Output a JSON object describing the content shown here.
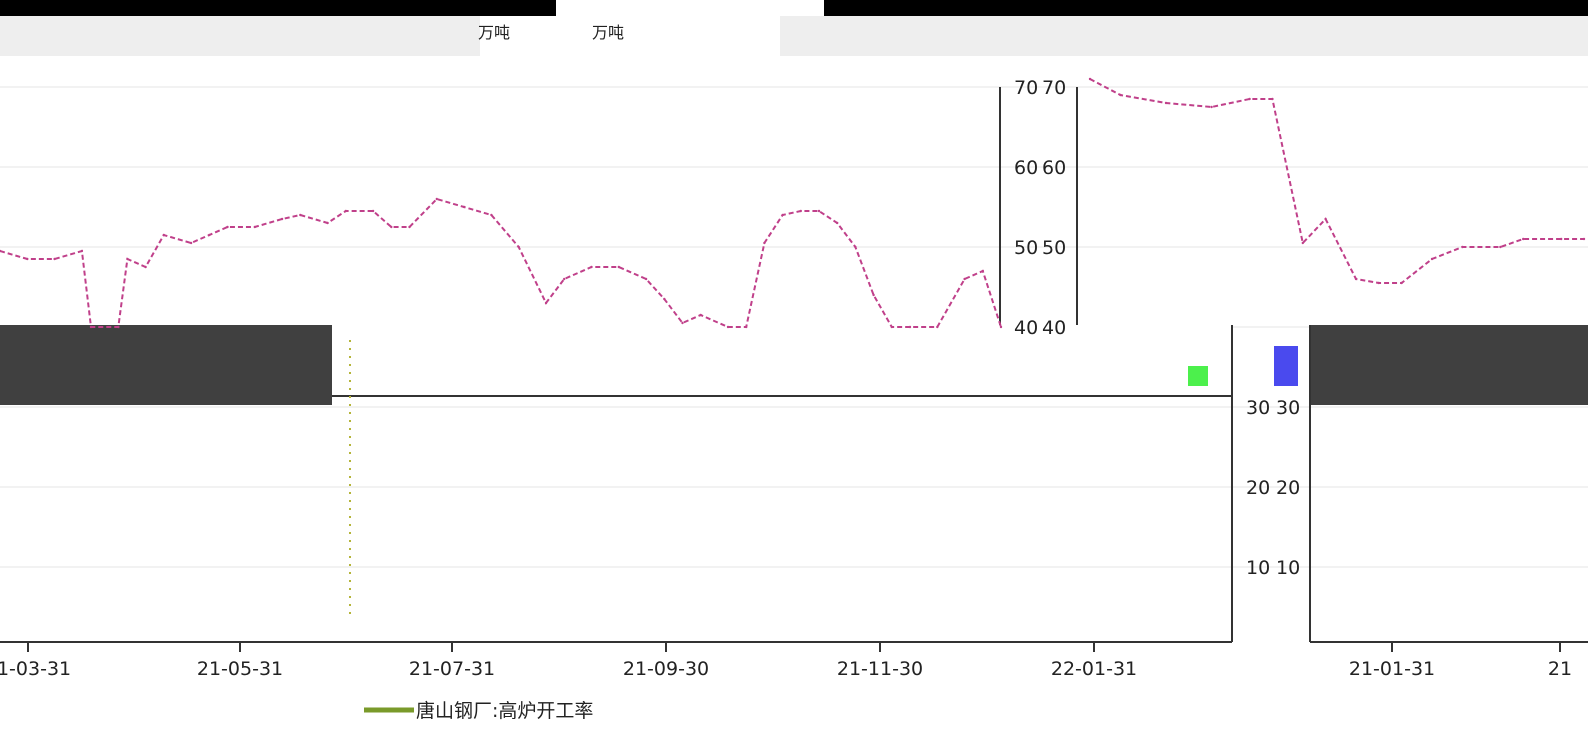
{
  "chart_data": {
    "type": "line",
    "unit_labels": [
      "万吨",
      "万吨"
    ],
    "y_ticks_left_axis": [
      "70",
      "60",
      "50",
      "40"
    ],
    "y_ticks_right_axis": [
      "70",
      "60",
      "50",
      "40",
      "30",
      "20",
      "10"
    ],
    "y_ticks_lower_axis": [
      "30",
      "20",
      "10"
    ],
    "x_ticks": [
      "21-03-31",
      "21-05-31",
      "21-07-31",
      "21-09-30",
      "21-11-30",
      "22-01-31"
    ],
    "x_ticks_right_panel": [
      "21-01-31",
      "21"
    ],
    "ylim": [
      0,
      73
    ],
    "series": [
      {
        "name": "唐山钢厂:高炉开工率",
        "color": "#7a9a2a",
        "values": [
          [
            0,
            49.5
          ],
          [
            3,
            48.5
          ],
          [
            6,
            48.5
          ],
          [
            9,
            49.5
          ],
          [
            10,
            40
          ],
          [
            13,
            40
          ],
          [
            14,
            48.5
          ],
          [
            16,
            47.5
          ],
          [
            18,
            51.5
          ],
          [
            21,
            50.5
          ],
          [
            23,
            51.5
          ],
          [
            25,
            52.5
          ],
          [
            28,
            52.5
          ],
          [
            31,
            53.5
          ],
          [
            33,
            54
          ],
          [
            36,
            53
          ],
          [
            38,
            54.5
          ],
          [
            41,
            54.5
          ],
          [
            43,
            52.5
          ],
          [
            45,
            52.5
          ],
          [
            48,
            56
          ],
          [
            51,
            55
          ],
          [
            54,
            54
          ],
          [
            57,
            50
          ],
          [
            60,
            43
          ],
          [
            62,
            46
          ],
          [
            65,
            47.5
          ],
          [
            68,
            47.5
          ],
          [
            71,
            46
          ],
          [
            73,
            43.5
          ],
          [
            75,
            40.5
          ],
          [
            77,
            41.5
          ],
          [
            80,
            40
          ],
          [
            82,
            40
          ],
          [
            84,
            50.5
          ],
          [
            86,
            54
          ],
          [
            88,
            54.5
          ],
          [
            90,
            54.5
          ],
          [
            92,
            53
          ],
          [
            94,
            50
          ],
          [
            96,
            44
          ],
          [
            98,
            40
          ],
          [
            100,
            40
          ],
          [
            103,
            40
          ],
          [
            106,
            46
          ],
          [
            108,
            47
          ],
          [
            110,
            40
          ]
        ]
      },
      {
        "name": "",
        "color": "#c0408a",
        "values": [
          [
            0,
            71
          ],
          [
            4,
            69
          ],
          [
            10,
            68
          ],
          [
            16,
            67.5
          ],
          [
            21,
            68.5
          ],
          [
            24,
            68.5
          ],
          [
            28,
            50.5
          ],
          [
            31,
            53.5
          ],
          [
            35,
            46
          ],
          [
            38,
            45.5
          ],
          [
            41,
            45.5
          ],
          [
            45,
            48.5
          ],
          [
            49,
            50
          ],
          [
            54,
            50
          ],
          [
            57,
            51
          ],
          [
            62,
            51
          ],
          [
            65,
            51
          ]
        ]
      }
    ]
  }
}
